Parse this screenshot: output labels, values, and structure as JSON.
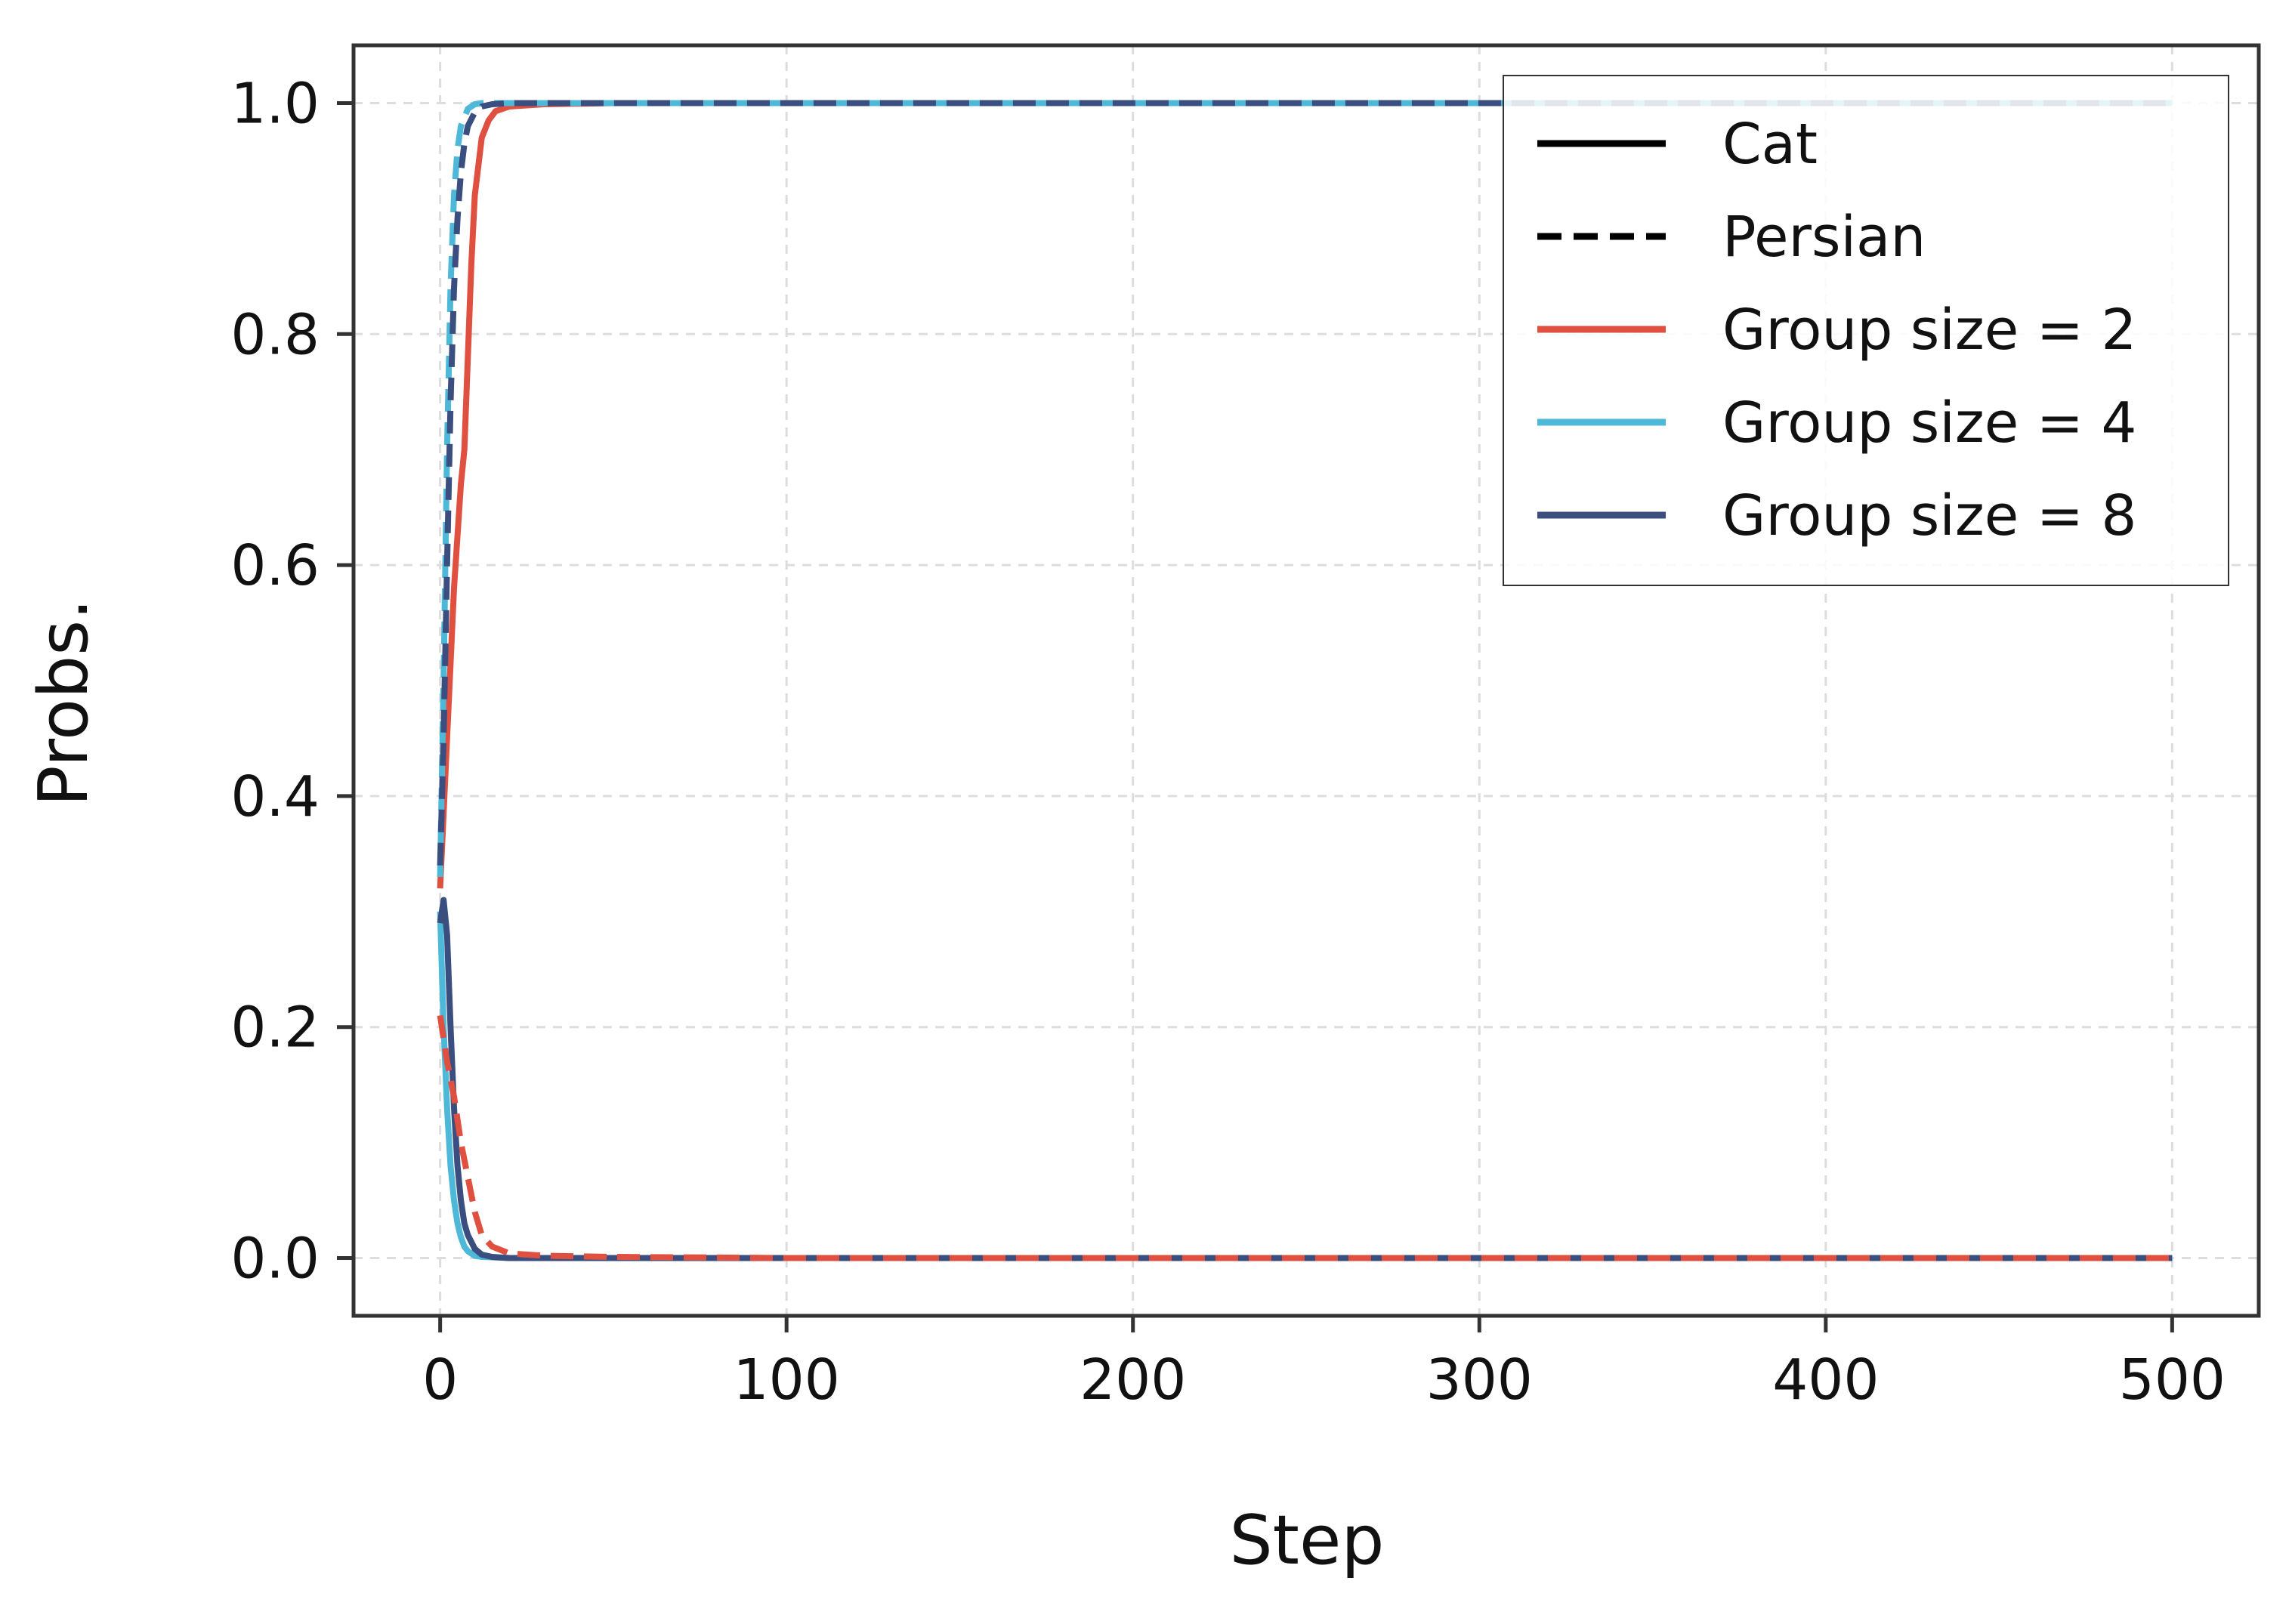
{
  "chart_data": {
    "type": "line",
    "title": "",
    "xlabel": "Step",
    "ylabel": "Probs.",
    "xlim": [
      -25,
      525
    ],
    "ylim": [
      -0.05,
      1.05
    ],
    "x_ticks": [
      0,
      100,
      200,
      300,
      400,
      500
    ],
    "x_tick_labels": [
      "0",
      "100",
      "200",
      "300",
      "400",
      "500"
    ],
    "y_ticks": [
      0.0,
      0.2,
      0.4,
      0.6,
      0.8,
      1.0
    ],
    "y_tick_labels": [
      "0.0",
      "0.2",
      "0.4",
      "0.6",
      "0.8",
      "1.0"
    ],
    "grid": true,
    "legend_position": "top-right",
    "legend": [
      {
        "label": "Cat",
        "color": "#000000",
        "style": "solid"
      },
      {
        "label": "Persian",
        "color": "#000000",
        "style": "dashed"
      },
      {
        "label": "Group size = 2",
        "color": "#e05040",
        "style": "solid"
      },
      {
        "label": "Group size = 4",
        "color": "#4db8d8",
        "style": "solid"
      },
      {
        "label": "Group size = 8",
        "color": "#3a4f80",
        "style": "solid"
      }
    ],
    "series": [
      {
        "group": "Group size = 2",
        "token": "Cat",
        "color": "#e05040",
        "style": "solid",
        "x": [
          0,
          2,
          4,
          6,
          7,
          8,
          9,
          10,
          12,
          14,
          16,
          20,
          30,
          50,
          100,
          200,
          300,
          400,
          500
        ],
        "y": [
          0.32,
          0.45,
          0.58,
          0.67,
          0.7,
          0.78,
          0.86,
          0.92,
          0.97,
          0.985,
          0.993,
          0.997,
          0.999,
          1.0,
          1.0,
          1.0,
          1.0,
          1.0,
          1.0
        ]
      },
      {
        "group": "Group size = 2",
        "token": "Persian",
        "color": "#e05040",
        "style": "dashed",
        "x": [
          0,
          1,
          2,
          3,
          4,
          5,
          6,
          8,
          10,
          12,
          15,
          20,
          30,
          50,
          100,
          200,
          300,
          400,
          500
        ],
        "y": [
          0.21,
          0.19,
          0.17,
          0.155,
          0.14,
          0.12,
          0.1,
          0.07,
          0.04,
          0.02,
          0.01,
          0.004,
          0.002,
          0.001,
          0.0,
          0.0,
          0.0,
          0.0,
          0.0
        ]
      },
      {
        "group": "Group size = 4",
        "token": "Cat",
        "color": "#4db8d8",
        "style": "solid",
        "x": [
          0,
          1,
          2,
          3,
          4,
          5,
          6,
          7,
          8,
          10,
          12,
          20,
          50,
          100,
          200,
          300,
          400,
          500
        ],
        "y": [
          0.3,
          0.2,
          0.13,
          0.08,
          0.05,
          0.03,
          0.018,
          0.01,
          0.006,
          0.002,
          0.001,
          0.0,
          0.0,
          0.0,
          0.0,
          0.0,
          0.0,
          0.0
        ]
      },
      {
        "group": "Group size = 4",
        "token": "Persian",
        "color": "#4db8d8",
        "style": "dashed",
        "x": [
          0,
          1,
          2,
          3,
          4,
          5,
          6,
          8,
          10,
          12,
          20,
          50,
          100,
          200,
          300,
          400,
          500
        ],
        "y": [
          0.33,
          0.5,
          0.7,
          0.84,
          0.92,
          0.96,
          0.98,
          0.995,
          0.999,
          1.0,
          1.0,
          1.0,
          1.0,
          1.0,
          1.0,
          1.0,
          1.0
        ]
      },
      {
        "group": "Group size = 8",
        "token": "Cat",
        "color": "#3a4f80",
        "style": "solid",
        "x": [
          0,
          1,
          2,
          3,
          4,
          5,
          6,
          7,
          8,
          10,
          12,
          15,
          20,
          50,
          100,
          200,
          300,
          400,
          500
        ],
        "y": [
          0.29,
          0.31,
          0.28,
          0.2,
          0.13,
          0.08,
          0.05,
          0.03,
          0.02,
          0.008,
          0.003,
          0.001,
          0.0,
          0.0,
          0.0,
          0.0,
          0.0,
          0.0,
          0.0
        ]
      },
      {
        "group": "Group size = 8",
        "token": "Persian",
        "color": "#3a4f80",
        "style": "dashed",
        "x": [
          0,
          1,
          2,
          3,
          4,
          5,
          6,
          7,
          8,
          10,
          12,
          15,
          20,
          50,
          100,
          200,
          300,
          400,
          500
        ],
        "y": [
          0.34,
          0.45,
          0.6,
          0.74,
          0.84,
          0.9,
          0.94,
          0.965,
          0.98,
          0.992,
          0.997,
          0.999,
          1.0,
          1.0,
          1.0,
          1.0,
          1.0,
          1.0,
          1.0
        ]
      }
    ]
  }
}
